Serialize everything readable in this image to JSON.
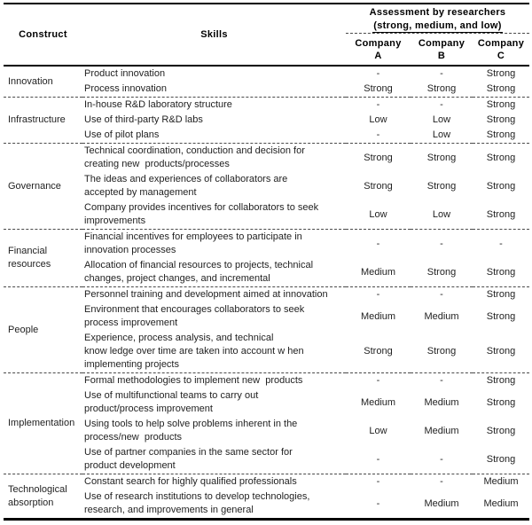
{
  "table": {
    "colors": {
      "text": "#1f1f1f",
      "border": "#000000",
      "dashed_divider": "#4a4a4a",
      "background": "#ffffff"
    },
    "headers": {
      "construct": "Construct",
      "skills": "Skills",
      "assessment_title": "Assessment by researchers",
      "assessment_subtitle": "(strong, medium, and low)",
      "company_label": "Company",
      "companies": [
        "A",
        "B",
        "C"
      ]
    },
    "groups": [
      {
        "construct": "Innovation",
        "rows": [
          {
            "skill": "Product innovation",
            "a": "-",
            "b": "-",
            "c": "Strong"
          },
          {
            "skill": "Process innovation",
            "a": "Strong",
            "b": "Strong",
            "c": "Strong"
          }
        ]
      },
      {
        "construct": "Infrastructure",
        "rows": [
          {
            "skill": "In-house R&D laboratory structure",
            "a": "-",
            "b": "-",
            "c": "Strong"
          },
          {
            "skill": "Use of third-party R&D labs",
            "a": "Low",
            "b": "Low",
            "c": "Strong"
          },
          {
            "skill": "Use of pilot plans",
            "a": "-",
            "b": "Low",
            "c": "Strong"
          }
        ]
      },
      {
        "construct": "Governance",
        "rows": [
          {
            "skill": "Technical coordination, conduction and decision for\ncreating new  products/processes",
            "a": "Strong",
            "b": "Strong",
            "c": "Strong"
          },
          {
            "skill": "The ideas and experiences of collaborators are\naccepted by management",
            "a": "Strong",
            "b": "Strong",
            "c": "Strong"
          },
          {
            "skill": "Company provides incentives for collaborators to seek\nimprovements",
            "a": "Low",
            "b": "Low",
            "c": "Strong"
          }
        ]
      },
      {
        "construct": "Financial\nresources",
        "rows": [
          {
            "skill": "Financial incentives for employees to participate in\ninnovation processes",
            "a": "-",
            "b": "-",
            "c": "-"
          },
          {
            "skill": "Allocation of financial resources to projects, technical\nchanges, project changes, and incremental",
            "a": "Medium",
            "b": "Strong",
            "c": "Strong"
          }
        ]
      },
      {
        "construct": "People",
        "rows": [
          {
            "skill": "Personnel training and development aimed at innovation",
            "a": "-",
            "b": "-",
            "c": "Strong"
          },
          {
            "skill": "Environment that encourages collaborators to seek\nprocess improvement",
            "a": "Medium",
            "b": "Medium",
            "c": "Strong"
          },
          {
            "skill": "Experience, process analysis, and technical\nknow ledge over time are taken into account w hen\nimplementing projects",
            "a": "Strong",
            "b": "Strong",
            "c": "Strong"
          }
        ]
      },
      {
        "construct": "Implementation",
        "rows": [
          {
            "skill": "Formal methodologies to implement new  products",
            "a": "-",
            "b": "-",
            "c": "Strong"
          },
          {
            "skill": "Use of multifunctional teams to carry out\nproduct/process improvement",
            "a": "Medium",
            "b": "Medium",
            "c": "Strong"
          },
          {
            "skill": "Using tools to help solve problems inherent in the\nprocess/new  products",
            "a": "Low",
            "b": "Medium",
            "c": "Strong"
          },
          {
            "skill": "Use of partner companies in the same sector for\nproduct development",
            "a": "-",
            "b": "-",
            "c": "Strong"
          }
        ]
      },
      {
        "construct": "Technological\nabsorption",
        "rows": [
          {
            "skill": "Constant search for highly qualified professionals",
            "a": "-",
            "b": "-",
            "c": "Medium"
          },
          {
            "skill": "Use of research institutions to develop technologies,\nresearch, and improvements in general",
            "a": "-",
            "b": "Medium",
            "c": "Medium"
          }
        ]
      }
    ]
  }
}
